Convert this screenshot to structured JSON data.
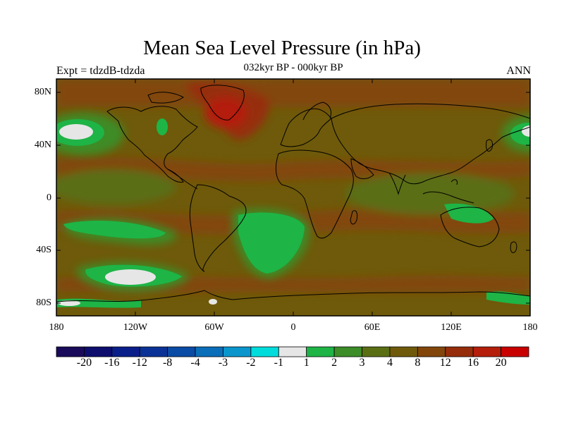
{
  "title": "Mean Sea Level Pressure (in hPa)",
  "subtitle": "032kyr BP - 000kyr BP",
  "experiment_label": "Expt = tdzdB-tdzda",
  "season_label": "ANN",
  "map": {
    "projection": "cylindrical equidistant",
    "lat_range": [
      -90,
      90
    ],
    "lon_range": [
      -180,
      180
    ],
    "lat_ticks": [
      "80N",
      "40N",
      "0",
      "40S",
      "80S"
    ],
    "lon_ticks": [
      "180",
      "120W",
      "60W",
      "0",
      "60E",
      "120E",
      "180"
    ]
  },
  "colorbar": {
    "labels": [
      "-20",
      "-16",
      "-12",
      "-8",
      "-4",
      "-3",
      "-2",
      "-1",
      "1",
      "2",
      "3",
      "4",
      "8",
      "12",
      "16",
      "20"
    ],
    "colors": [
      "#1a0a5a",
      "#0d0d6e",
      "#0a1e8a",
      "#0a3296",
      "#0a4ba5",
      "#0a6eb9",
      "#0a96cd",
      "#00dcdc",
      "#e6e6e6",
      "#1eb446",
      "#3c8c28",
      "#5a6e14",
      "#6e5a0a",
      "#82460a",
      "#962d0a",
      "#b41e0a",
      "#c80000"
    ]
  }
}
